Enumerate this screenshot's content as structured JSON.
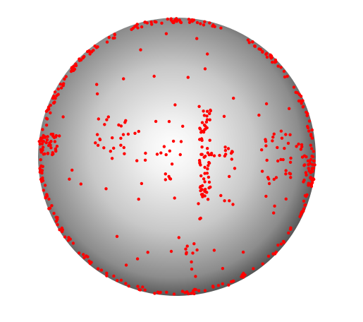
{
  "scene": {
    "subject": "sphere",
    "background_color": "#ffffff",
    "sphere_highlight_color": "#ffffff",
    "sphere_edge_color": "#0a0a0a",
    "point_color": "#ff0000",
    "point_marker": "dot"
  }
}
